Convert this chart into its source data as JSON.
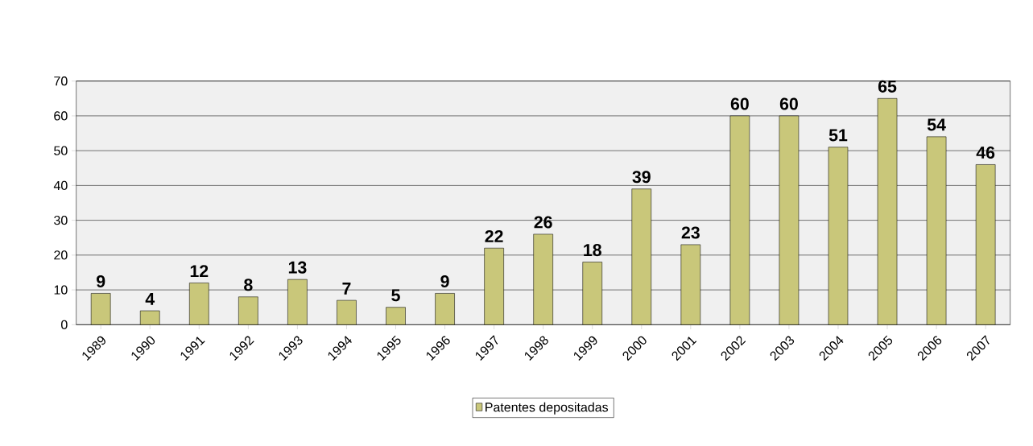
{
  "chart_data": {
    "type": "bar",
    "categories": [
      "1989",
      "1990",
      "1991",
      "1992",
      "1993",
      "1994",
      "1995",
      "1996",
      "1997",
      "1998",
      "1999",
      "2000",
      "2001",
      "2002",
      "2003",
      "2004",
      "2005",
      "2006",
      "2007"
    ],
    "series": [
      {
        "name": "Patentes depositadas",
        "color": "#c9c77a",
        "values": [
          9,
          4,
          12,
          8,
          13,
          7,
          5,
          9,
          22,
          26,
          18,
          39,
          23,
          60,
          60,
          51,
          65,
          54,
          46
        ]
      }
    ],
    "ylim": [
      0,
      70
    ],
    "yticks": [
      0,
      10,
      20,
      30,
      40,
      50,
      60,
      70
    ],
    "grid": "y",
    "legend": "bottom",
    "data_labels": true
  }
}
